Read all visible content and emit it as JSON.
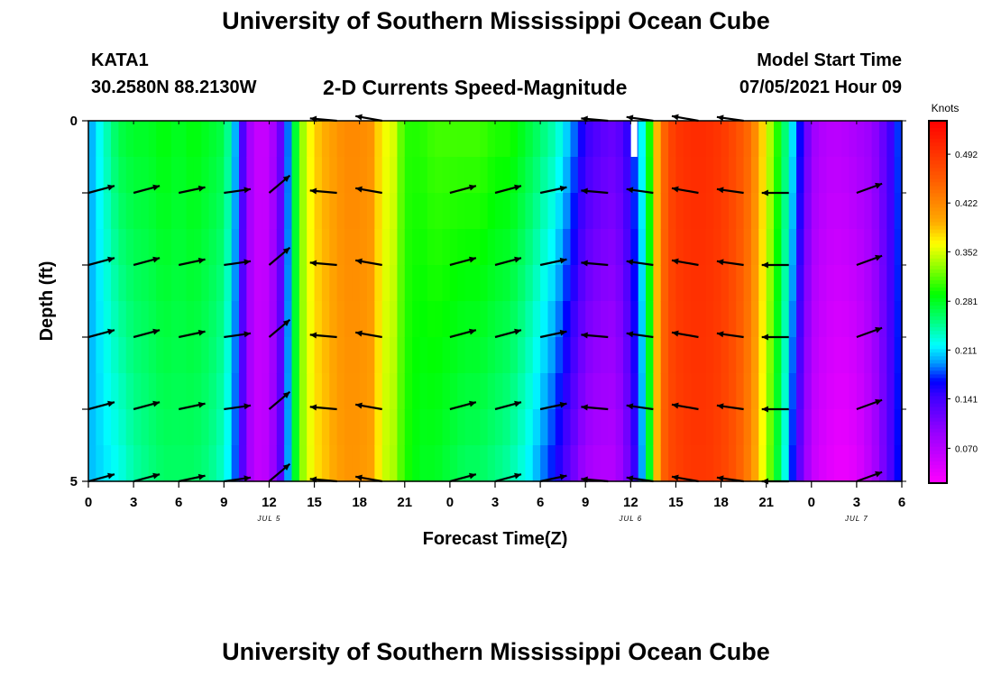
{
  "header": {
    "title": "University of Southern Mississippi Ocean Cube",
    "station_id": "KATA1",
    "station_coords": "30.2580N  88.2130W",
    "plot_title": "2-D Currents Speed-Magnitude",
    "model_start_label": "Model Start Time",
    "model_start_value": "07/05/2021 Hour 09"
  },
  "footer": {
    "title": "University of Southern Mississippi Ocean Cube"
  },
  "chart_data": {
    "type": "heatmap",
    "title": "2-D Currents Speed-Magnitude",
    "xlabel": "Forecast Time(Z)",
    "ylabel": "Depth (ft)",
    "x_unit": "hours since 07/05/2021 00Z",
    "xlim": [
      0,
      54
    ],
    "ylim": [
      0,
      5
    ],
    "x_ticks": [
      0,
      3,
      6,
      9,
      12,
      15,
      18,
      21,
      24,
      27,
      30,
      33,
      36,
      39,
      42,
      45,
      48,
      51,
      54
    ],
    "x_tick_labels": [
      "0",
      "3",
      "6",
      "9",
      "12",
      "15",
      "18",
      "21",
      "0",
      "3",
      "6",
      "9",
      "12",
      "15",
      "18",
      "21",
      "0",
      "3",
      "6"
    ],
    "y_tick_values": [
      0,
      5
    ],
    "y_tick_labels": [
      "0",
      "5"
    ],
    "date_labels": [
      {
        "x": 12,
        "label": "JUL 5"
      },
      {
        "x": 36,
        "label": "JUL 6"
      },
      {
        "x": 51,
        "label": "JUL 7"
      }
    ],
    "colorbar": {
      "label": "Knots",
      "min": 0.02,
      "max": 0.54,
      "tick_values": [
        0.07,
        0.141,
        0.211,
        0.281,
        0.352,
        0.422,
        0.492
      ],
      "tick_labels": [
        "0.070",
        "0.141",
        "0.211",
        "0.281",
        "0.352",
        "0.422",
        "0.492"
      ]
    },
    "speed_profile": {
      "hours": [
        0,
        1,
        2,
        3,
        4,
        5,
        6,
        7,
        8,
        9,
        9.5,
        10,
        10.5,
        11,
        12,
        13,
        13.5,
        14,
        15,
        16,
        17,
        18,
        19,
        19.5,
        20,
        21,
        22,
        23,
        24,
        25,
        26,
        27,
        28,
        29,
        30,
        31,
        32,
        33,
        34,
        35,
        36,
        37,
        37.5,
        38,
        38.5,
        39,
        40,
        41,
        42,
        43,
        44,
        45,
        46,
        47,
        48,
        49,
        50,
        51,
        52,
        53,
        54
      ],
      "surface": [
        0.19,
        0.23,
        0.27,
        0.28,
        0.28,
        0.29,
        0.28,
        0.29,
        0.28,
        0.27,
        0.23,
        0.17,
        0.1,
        0.06,
        0.06,
        0.14,
        0.23,
        0.32,
        0.38,
        0.4,
        0.42,
        0.42,
        0.41,
        0.35,
        0.37,
        0.3,
        0.3,
        0.31,
        0.31,
        0.31,
        0.31,
        0.3,
        0.3,
        0.28,
        0.26,
        0.24,
        0.2,
        0.15,
        0.13,
        0.12,
        0.16,
        0.24,
        0.35,
        0.43,
        0.47,
        0.49,
        0.5,
        0.5,
        0.49,
        0.47,
        0.44,
        0.36,
        0.28,
        0.19,
        0.09,
        0.07,
        0.07,
        0.08,
        0.09,
        0.13,
        0.19
      ],
      "bottom": [
        0.2,
        0.21,
        0.22,
        0.24,
        0.25,
        0.26,
        0.26,
        0.26,
        0.25,
        0.23,
        0.2,
        0.16,
        0.1,
        0.06,
        0.07,
        0.15,
        0.24,
        0.32,
        0.37,
        0.39,
        0.41,
        0.41,
        0.4,
        0.34,
        0.35,
        0.3,
        0.28,
        0.28,
        0.27,
        0.26,
        0.26,
        0.25,
        0.24,
        0.22,
        0.19,
        0.16,
        0.12,
        0.08,
        0.07,
        0.07,
        0.12,
        0.22,
        0.34,
        0.44,
        0.47,
        0.48,
        0.49,
        0.49,
        0.48,
        0.46,
        0.42,
        0.34,
        0.25,
        0.14,
        0.06,
        0.04,
        0.03,
        0.04,
        0.07,
        0.12,
        0.18
      ]
    },
    "vectors": {
      "depths": [
        0,
        1,
        2,
        3,
        4,
        5
      ],
      "hours": [
        0,
        3,
        6,
        9,
        12,
        16.5,
        19.5,
        24,
        27,
        30,
        34.5,
        37.5,
        40.5,
        43.5,
        46.5,
        51
      ],
      "directions_deg": [
        15,
        15,
        12,
        8,
        40,
        175,
        170,
        15,
        15,
        12,
        175,
        172,
        170,
        172,
        180,
        20
      ],
      "surface_shown": [
        false,
        false,
        false,
        false,
        false,
        true,
        true,
        false,
        false,
        false,
        true,
        true,
        true,
        true,
        false,
        false
      ]
    }
  }
}
